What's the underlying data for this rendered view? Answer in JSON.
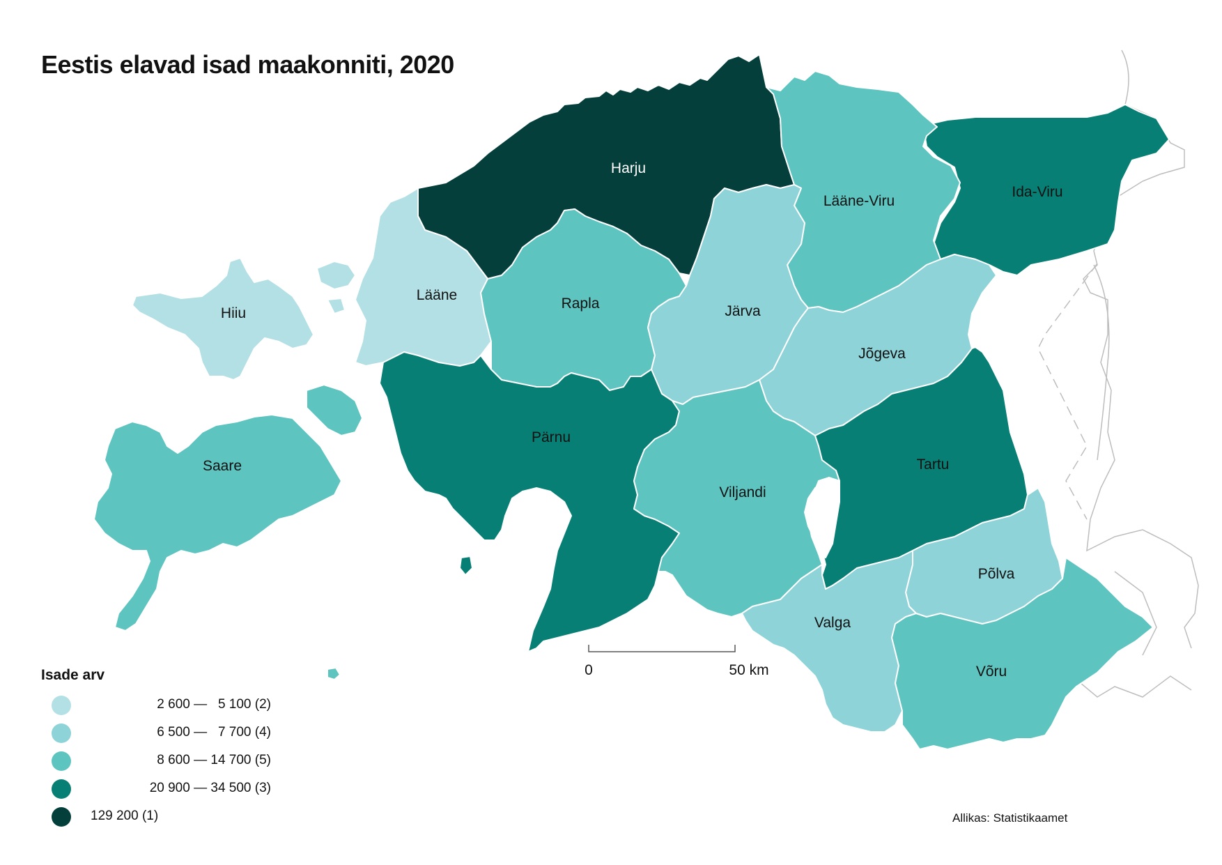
{
  "title": "Eestis elavad isad maakonniti, 2020",
  "source": "Allikas: Statistikaamet",
  "scale_bar": {
    "start_label": "0",
    "end_label": "50 km",
    "distance_km": 50
  },
  "legend": {
    "title": "Isade arv",
    "classes": [
      {
        "label": "2 600 —   5 100 (2)",
        "color": "#b3e0e4"
      },
      {
        "label": "6 500 —   7 700 (4)",
        "color": "#8dd3d7"
      },
      {
        "label": "8 600 — 14 700 (5)",
        "color": "#5ec4c0"
      },
      {
        "label": "20 900 — 34 500 (3)",
        "color": "#077f74"
      },
      {
        "label": "129 200 (1)",
        "color": "#053f3c"
      }
    ]
  },
  "counties": [
    {
      "id": "harju",
      "name": "Harju",
      "class_index": 4
    },
    {
      "id": "ida-viru",
      "name": "Ida-Viru",
      "class_index": 3
    },
    {
      "id": "laane-viru",
      "name": "Lääne-Viru",
      "class_index": 2
    },
    {
      "id": "laane",
      "name": "Lääne",
      "class_index": 0
    },
    {
      "id": "hiiu",
      "name": "Hiiu",
      "class_index": 0
    },
    {
      "id": "rapla",
      "name": "Rapla",
      "class_index": 2
    },
    {
      "id": "jarva",
      "name": "Järva",
      "class_index": 1
    },
    {
      "id": "jogeva",
      "name": "Jõgeva",
      "class_index": 1
    },
    {
      "id": "saare",
      "name": "Saare",
      "class_index": 2
    },
    {
      "id": "parnu",
      "name": "Pärnu",
      "class_index": 3
    },
    {
      "id": "viljandi",
      "name": "Viljandi",
      "class_index": 2
    },
    {
      "id": "tartu",
      "name": "Tartu",
      "class_index": 3
    },
    {
      "id": "polva",
      "name": "Põlva",
      "class_index": 1
    },
    {
      "id": "valga",
      "name": "Valga",
      "class_index": 1
    },
    {
      "id": "voru",
      "name": "Võru",
      "class_index": 2
    }
  ]
}
